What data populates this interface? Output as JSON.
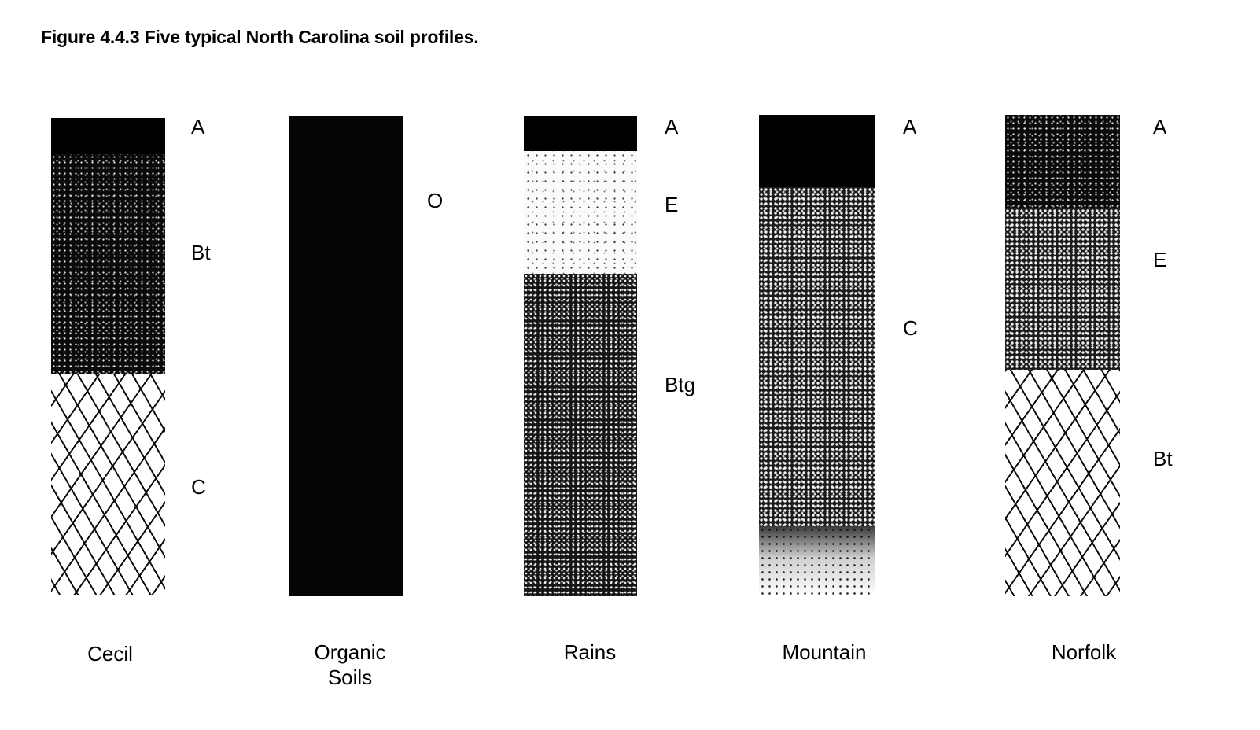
{
  "figure": {
    "title": "Figure 4.4.3 Five typical North Carolina soil profiles."
  },
  "profiles": [
    {
      "name_line1": "Cecil",
      "name_line2": "",
      "layers": [
        {
          "horizon": "A",
          "pattern": "black",
          "depth_fraction": [
            0.0,
            0.075
          ]
        },
        {
          "horizon": "Bt",
          "pattern": "dense-speckle",
          "depth_fraction": [
            0.075,
            0.535
          ]
        },
        {
          "horizon": "C",
          "pattern": "dash",
          "depth_fraction": [
            0.535,
            1.0
          ]
        }
      ]
    },
    {
      "name_line1": "Organic",
      "name_line2": "Soils",
      "layers": [
        {
          "horizon": "O",
          "pattern": "organic",
          "depth_fraction": [
            0.0,
            1.0
          ]
        }
      ]
    },
    {
      "name_line1": "Rains",
      "name_line2": "",
      "layers": [
        {
          "horizon": "A",
          "pattern": "black",
          "depth_fraction": [
            0.0,
            0.072
          ]
        },
        {
          "horizon": "E",
          "pattern": "light-speckle",
          "depth_fraction": [
            0.072,
            0.328
          ]
        },
        {
          "horizon": "Btg",
          "pattern": "medium-speckle",
          "depth_fraction": [
            0.328,
            1.0
          ]
        }
      ]
    },
    {
      "name_line1": "Mountain",
      "name_line2": "",
      "layers": [
        {
          "horizon": "A",
          "pattern": "black",
          "depth_fraction": [
            0.0,
            0.15
          ]
        },
        {
          "horizon": "C",
          "pattern": "coarse-gray",
          "depth_fraction": [
            0.15,
            0.855
          ]
        },
        {
          "horizon": "",
          "pattern": "fade",
          "depth_fraction": [
            0.855,
            1.0
          ]
        }
      ]
    },
    {
      "name_line1": "Norfolk",
      "name_line2": "",
      "layers": [
        {
          "horizon": "A",
          "pattern": "dense-speckle",
          "depth_fraction": [
            0.0,
            0.195
          ]
        },
        {
          "horizon": "E",
          "pattern": "coarse-gray",
          "depth_fraction": [
            0.195,
            0.53
          ]
        },
        {
          "horizon": "Bt",
          "pattern": "dash",
          "depth_fraction": [
            0.53,
            1.0
          ]
        }
      ]
    }
  ]
}
